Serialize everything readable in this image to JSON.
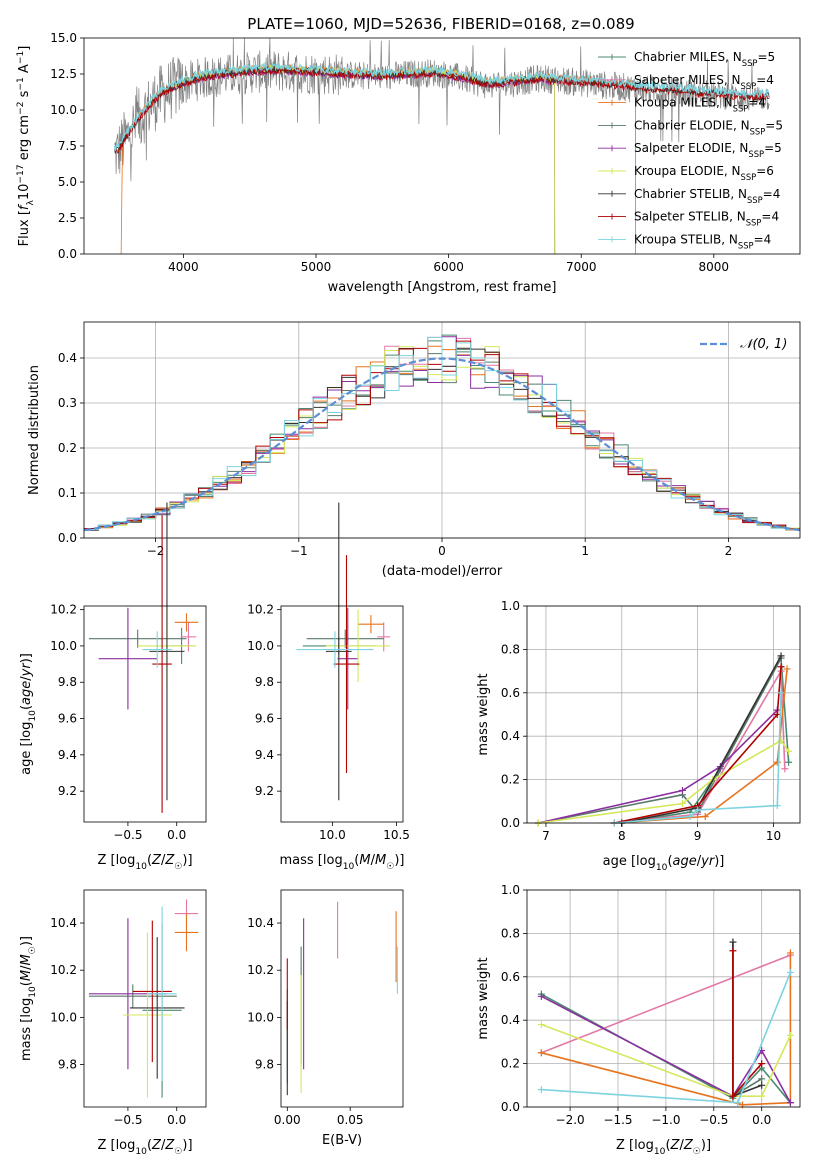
{
  "figure": {
    "title": "PLATE=1060, MJD=52636, FIBERID=0168, z=0.089"
  },
  "series_styles": [
    {
      "name": "Chabrier MILES",
      "nssp": "5",
      "color": "#4a8a6e"
    },
    {
      "name": "Salpeter MILES",
      "nssp": "4",
      "color": "#e377a6"
    },
    {
      "name": "Kroupa MILES",
      "nssp": "4",
      "color": "#e8731f"
    },
    {
      "name": "Chabrier ELODIE",
      "nssp": "5",
      "color": "#5a7a6a"
    },
    {
      "name": "Salpeter ELODIE",
      "nssp": "5",
      "color": "#8b2fa0"
    },
    {
      "name": "Kroupa ELODIE",
      "nssp": "6",
      "color": "#d4e85a"
    },
    {
      "name": "Chabrier STELIB",
      "nssp": "4",
      "color": "#333333"
    },
    {
      "name": "Salpeter STELIB",
      "nssp": "4",
      "color": "#b00000"
    },
    {
      "name": "Kroupa STELIB",
      "nssp": "4",
      "color": "#7dd4e0"
    }
  ],
  "chart_data": [
    {
      "type": "line",
      "panel": "spectrum",
      "xlabel": "wavelength [Angstrom, rest frame]",
      "ylabel": "Flux [f_λ 10^-17 erg cm^-2 s^-1 A^-1]",
      "xlim": [
        3250,
        8650
      ],
      "ylim": [
        0,
        15
      ],
      "xticks": [
        4000,
        5000,
        6000,
        7000,
        8000
      ],
      "yticks": [
        0.0,
        2.5,
        5.0,
        7.5,
        10.0,
        12.5,
        15.0
      ],
      "data_color": "#808080",
      "legend_position": "lower right",
      "series": [
        {
          "name": "data",
          "x": [
            3500,
            3600,
            3700,
            3800,
            3900,
            4000,
            4100,
            4200,
            4300,
            4500,
            4700,
            4900,
            5100,
            5300,
            5500,
            5700,
            5900,
            6100,
            6300,
            6500,
            6700,
            6900,
            7100,
            7300,
            7500,
            7700,
            7900,
            8100,
            8300,
            8400
          ],
          "y": [
            7.0,
            8.5,
            9.8,
            10.8,
            11.4,
            11.8,
            12.1,
            12.3,
            12.4,
            12.6,
            12.7,
            12.6,
            12.5,
            12.4,
            12.3,
            12.5,
            12.6,
            12.2,
            11.7,
            11.9,
            12.2,
            12.0,
            11.8,
            11.6,
            11.4,
            11.3,
            11.1,
            11.0,
            10.8,
            10.9
          ]
        },
        {
          "name": "model",
          "x": [
            3500,
            3600,
            3700,
            3800,
            3900,
            4000,
            4100,
            4200,
            4300,
            4500,
            4700,
            4900,
            5100,
            5300,
            5500,
            5700,
            5900,
            6100,
            6300,
            6500,
            6700,
            6900,
            7100,
            7300,
            7500,
            7700,
            7900,
            8100,
            8300,
            8400
          ],
          "y": [
            7.2,
            8.6,
            9.9,
            10.9,
            11.5,
            11.9,
            12.2,
            12.4,
            12.5,
            12.7,
            12.8,
            12.7,
            12.6,
            12.5,
            12.4,
            12.5,
            12.6,
            12.3,
            11.8,
            12.0,
            12.2,
            12.0,
            11.9,
            11.7,
            11.5,
            11.4,
            11.2,
            11.1,
            10.9,
            11.0
          ]
        }
      ]
    },
    {
      "type": "line",
      "panel": "residuals",
      "xlabel": "(data-model)/error",
      "ylabel": "Normed distribution",
      "xlim": [
        -2.5,
        2.5
      ],
      "ylim": [
        0,
        0.48
      ],
      "xticks": [
        -2,
        -1,
        0,
        1,
        2
      ],
      "yticks": [
        0.0,
        0.1,
        0.2,
        0.3,
        0.4
      ],
      "grid": true,
      "legend_position": "upper right",
      "gaussian_label": "𝒩(0, 1)",
      "bin_edges_start": -2.5,
      "bin_width": 0.1,
      "gaussian_color": "#5b8fd6"
    },
    {
      "type": "scatter",
      "panel": "age_vs_Z",
      "xlabel": "Z [log10(Z/Z☉)]",
      "ylabel": "age [log10(age/yr)]",
      "xlim": [
        -0.95,
        0.3
      ],
      "ylim": [
        9.03,
        10.22
      ],
      "xticks": [
        -0.5,
        0.0
      ],
      "yticks": [
        9.2,
        9.4,
        9.6,
        9.8,
        10.0,
        10.2
      ],
      "series": [
        {
          "name": "Chabrier MILES",
          "x": 0.05,
          "y": 10.0,
          "xerr": 0.12,
          "yerr": 0.1
        },
        {
          "name": "Salpeter MILES",
          "x": 0.12,
          "y": 10.05,
          "xerr": 0.08,
          "yerr": 0.08
        },
        {
          "name": "Kroupa MILES",
          "x": 0.1,
          "y": 10.13,
          "xerr": 0.12,
          "yerr": 0.05
        },
        {
          "name": "Chabrier ELODIE",
          "x": -0.4,
          "y": 10.04,
          "xerr": 0.5,
          "yerr": 0.05
        },
        {
          "name": "Salpeter ELODIE",
          "x": -0.5,
          "y": 9.93,
          "xerr": 0.3,
          "yerr": 0.28
        },
        {
          "name": "Kroupa ELODIE",
          "x": -0.1,
          "y": 10.0,
          "xerr": 0.3,
          "yerr": 0.2
        },
        {
          "name": "Chabrier STELIB",
          "x": -0.1,
          "y": 9.97,
          "xerr": 0.18,
          "yerr": 0.82
        },
        {
          "name": "Salpeter STELIB",
          "x": -0.15,
          "y": 9.9,
          "xerr": 0.1,
          "yerr": 0.82
        },
        {
          "name": "Kroupa STELIB",
          "x": -0.2,
          "y": 9.98,
          "xerr": 0.15,
          "yerr": 0.1
        }
      ]
    },
    {
      "type": "scatter",
      "panel": "age_vs_mass",
      "xlabel": "mass [log10(M/M☉)]",
      "ylabel": "",
      "xlim": [
        9.6,
        10.55
      ],
      "ylim": [
        9.03,
        10.22
      ],
      "xticks": [
        10.0,
        10.5
      ],
      "yticks": [
        9.2,
        9.4,
        9.6,
        9.8,
        10.0,
        10.2
      ],
      "series": [
        {
          "name": "Chabrier MILES",
          "x": 10.05,
          "y": 10.0,
          "xerr": 0.28,
          "yerr": 0.05
        },
        {
          "name": "Salpeter MILES",
          "x": 10.4,
          "y": 10.05,
          "xerr": 0.05,
          "yerr": 0.08
        },
        {
          "name": "Kroupa MILES",
          "x": 10.3,
          "y": 10.12,
          "xerr": 0.1,
          "yerr": 0.05
        },
        {
          "name": "Chabrier ELODIE",
          "x": 10.1,
          "y": 10.04,
          "xerr": 0.3,
          "yerr": 0.05
        },
        {
          "name": "Salpeter ELODIE",
          "x": 10.12,
          "y": 9.93,
          "xerr": 0.08,
          "yerr": 0.28
        },
        {
          "name": "Kroupa ELODIE",
          "x": 10.2,
          "y": 10.0,
          "xerr": 0.25,
          "yerr": 0.2
        },
        {
          "name": "Chabrier STELIB",
          "x": 10.05,
          "y": 9.97,
          "xerr": 0.1,
          "yerr": 0.82
        },
        {
          "name": "Salpeter STELIB",
          "x": 10.11,
          "y": 9.9,
          "xerr": 0.1,
          "yerr": 0.6
        },
        {
          "name": "Kroupa STELIB",
          "x": 10.02,
          "y": 9.98,
          "xerr": 0.3,
          "yerr": 0.1
        }
      ]
    },
    {
      "type": "line",
      "panel": "mass_weight_vs_age",
      "xlabel": "age [log10(age/yr)]",
      "ylabel": "mass weight",
      "xlim": [
        6.75,
        10.35
      ],
      "ylim": [
        0,
        1.0
      ],
      "xticks": [
        7,
        8,
        9,
        10
      ],
      "yticks": [
        0.0,
        0.2,
        0.4,
        0.6,
        0.8,
        1.0
      ],
      "grid": true,
      "series": [
        {
          "name": "Chabrier MILES",
          "x": [
            8.0,
            8.9,
            9.3,
            10.1,
            10.2
          ],
          "y": [
            0.0,
            0.05,
            0.25,
            0.76,
            0.28
          ]
        },
        {
          "name": "Salpeter MILES",
          "x": [
            7.9,
            9.0,
            10.1,
            10.15
          ],
          "y": [
            0.0,
            0.04,
            0.7,
            0.25
          ]
        },
        {
          "name": "Kroupa MILES",
          "x": [
            7.9,
            9.1,
            10.05,
            10.18
          ],
          "y": [
            0.0,
            0.03,
            0.28,
            0.71
          ]
        },
        {
          "name": "Chabrier ELODIE",
          "x": [
            6.9,
            8.8,
            9.0,
            10.1
          ],
          "y": [
            0.0,
            0.13,
            0.05,
            0.76
          ]
        },
        {
          "name": "Salpeter ELODIE",
          "x": [
            6.9,
            8.8,
            9.3,
            10.05
          ],
          "y": [
            0.0,
            0.15,
            0.26,
            0.52
          ]
        },
        {
          "name": "Kroupa ELODIE",
          "x": [
            6.9,
            8.8,
            9.2,
            10.1,
            10.2
          ],
          "y": [
            0.0,
            0.09,
            0.2,
            0.38,
            0.33
          ]
        },
        {
          "name": "Chabrier STELIB",
          "x": [
            8.0,
            9.0,
            10.1
          ],
          "y": [
            0.0,
            0.07,
            0.77
          ]
        },
        {
          "name": "Salpeter STELIB",
          "x": [
            7.9,
            9.0,
            10.05,
            10.1
          ],
          "y": [
            0.0,
            0.08,
            0.5,
            0.72
          ]
        },
        {
          "name": "Kroupa STELIB",
          "x": [
            7.9,
            8.9,
            9.0,
            10.05,
            10.1
          ],
          "y": [
            0.0,
            0.03,
            0.06,
            0.08,
            0.6
          ]
        }
      ]
    },
    {
      "type": "scatter",
      "panel": "mass_vs_Z",
      "xlabel": "Z [log10(Z/Z☉)]",
      "ylabel": "mass [log10(M/M☉)]",
      "xlim": [
        -0.95,
        0.3
      ],
      "ylim": [
        9.62,
        10.54
      ],
      "xticks": [
        -0.5,
        0.0
      ],
      "yticks": [
        9.8,
        10.0,
        10.2,
        10.4
      ],
      "series": [
        {
          "name": "Chabrier MILES",
          "x": -0.15,
          "y": 10.03,
          "xerr": 0.2,
          "yerr": 0.37
        },
        {
          "name": "Salpeter MILES",
          "x": 0.1,
          "y": 10.44,
          "xerr": 0.12,
          "yerr": 0.06
        },
        {
          "name": "Kroupa MILES",
          "x": 0.1,
          "y": 10.36,
          "xerr": 0.12,
          "yerr": 0.08
        },
        {
          "name": "Chabrier ELODIE",
          "x": -0.45,
          "y": 10.09,
          "xerr": 0.45,
          "yerr": 0.05
        },
        {
          "name": "Salpeter ELODIE",
          "x": -0.5,
          "y": 10.1,
          "xerr": 0.4,
          "yerr": 0.32
        },
        {
          "name": "Kroupa ELODIE",
          "x": -0.3,
          "y": 10.01,
          "xerr": 0.25,
          "yerr": 0.35
        },
        {
          "name": "Chabrier STELIB",
          "x": -0.2,
          "y": 10.04,
          "xerr": 0.28,
          "yerr": 0.3
        },
        {
          "name": "Salpeter STELIB",
          "x": -0.25,
          "y": 10.11,
          "xerr": 0.2,
          "yerr": 0.3
        },
        {
          "name": "Kroupa STELIB",
          "x": -0.15,
          "y": 10.1,
          "xerr": 0.15,
          "yerr": 0.37
        }
      ]
    },
    {
      "type": "scatter",
      "panel": "mass_vs_EBV",
      "xlabel": "E(B-V)",
      "ylabel": "",
      "xlim": [
        -0.005,
        0.092
      ],
      "ylim": [
        9.62,
        10.54
      ],
      "xticks": [
        0.0,
        0.05
      ],
      "yticks": [
        9.8,
        10.0,
        10.2,
        10.4
      ],
      "series": [
        {
          "name": "Chabrier MILES",
          "x": 0.0,
          "y": 9.92,
          "yerr": 0.2
        },
        {
          "name": "Salpeter MILES",
          "x": 0.04,
          "y": 10.37,
          "yerr": 0.12
        },
        {
          "name": "Kroupa MILES",
          "x": 0.0865,
          "y": 10.3,
          "yerr": 0.15
        },
        {
          "name": "Chabrier ELODIE",
          "x": 0.011,
          "y": 10.05,
          "yerr": 0.25
        },
        {
          "name": "Salpeter ELODIE",
          "x": 0.013,
          "y": 10.1,
          "yerr": 0.32
        },
        {
          "name": "Kroupa ELODIE",
          "x": 0.011,
          "y": 9.93,
          "yerr": 0.25
        },
        {
          "name": "Chabrier STELIB",
          "x": 0.0,
          "y": 9.87,
          "yerr": 0.2
        },
        {
          "name": "Salpeter STELIB",
          "x": 0.0,
          "y": 10.1,
          "yerr": 0.15
        },
        {
          "name": "Kroupa STELIB",
          "x": 0.0875,
          "y": 10.2,
          "yerr": 0.1
        }
      ]
    },
    {
      "type": "line",
      "panel": "mass_weight_vs_Z",
      "xlabel": "Z [log10(Z/Z☉)]",
      "ylabel": "mass weight",
      "xlim": [
        -2.45,
        0.4
      ],
      "ylim": [
        0,
        1.0
      ],
      "xticks": [
        -2.0,
        -1.5,
        -1.0,
        -0.5,
        0.0
      ],
      "yticks": [
        0.0,
        0.2,
        0.4,
        0.6,
        0.8,
        1.0
      ],
      "grid": true,
      "series": [
        {
          "name": "Chabrier MILES",
          "x": [
            -2.3,
            -0.3,
            0.0,
            0.3
          ],
          "y": [
            0.52,
            0.04,
            0.18,
            0.02
          ]
        },
        {
          "name": "Salpeter MILES",
          "x": [
            -2.3,
            0.3
          ],
          "y": [
            0.25,
            0.7
          ]
        },
        {
          "name": "Kroupa MILES",
          "x": [
            -2.3,
            -0.2,
            0.3,
            0.3
          ],
          "y": [
            0.25,
            0.01,
            0.02,
            0.71
          ]
        },
        {
          "name": "Chabrier ELODIE",
          "x": [
            -0.3,
            -0.3,
            0.0
          ],
          "y": [
            0.76,
            0.05,
            0.13
          ]
        },
        {
          "name": "Salpeter ELODIE",
          "x": [
            -2.3,
            -0.3,
            0.0,
            0.3
          ],
          "y": [
            0.51,
            0.05,
            0.26,
            0.02
          ]
        },
        {
          "name": "Kroupa ELODIE",
          "x": [
            -2.3,
            -0.3,
            0.0,
            0.3
          ],
          "y": [
            0.38,
            0.05,
            0.05,
            0.33
          ]
        },
        {
          "name": "Chabrier STELIB",
          "x": [
            -0.3,
            -0.3,
            0.0
          ],
          "y": [
            0.76,
            0.05,
            0.1
          ]
        },
        {
          "name": "Salpeter STELIB",
          "x": [
            -0.3,
            -0.3,
            0.0
          ],
          "y": [
            0.72,
            0.05,
            0.2
          ]
        },
        {
          "name": "Kroupa STELIB",
          "x": [
            -2.3,
            -0.25,
            0.3
          ],
          "y": [
            0.08,
            0.02,
            0.62
          ]
        }
      ]
    }
  ]
}
